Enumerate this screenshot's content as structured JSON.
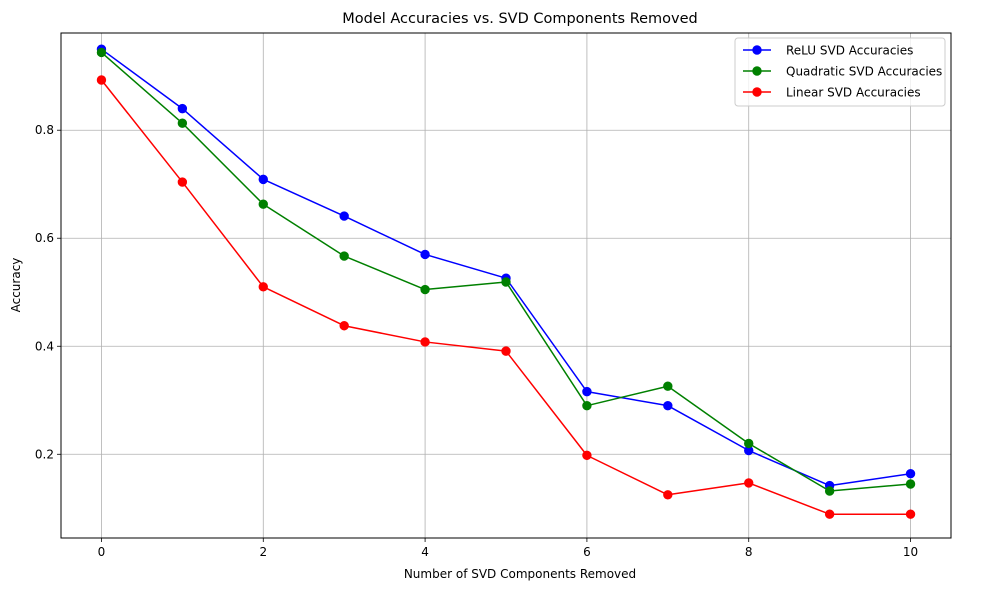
{
  "chart_data": {
    "type": "line",
    "title": "Model Accuracies vs. SVD Components Removed",
    "xlabel": "Number of SVD Components Removed",
    "ylabel": "Accuracy",
    "x": [
      0,
      1,
      2,
      3,
      4,
      5,
      6,
      7,
      8,
      9,
      10
    ],
    "xlim": [
      -0.5,
      10.5
    ],
    "ylim": [
      0.045,
      0.98
    ],
    "xticks": [
      0,
      2,
      4,
      6,
      8,
      10
    ],
    "xtick_labels": [
      "0",
      "2",
      "4",
      "6",
      "8",
      "10"
    ],
    "yticks": [
      0.2,
      0.4,
      0.6,
      0.8
    ],
    "ytick_labels": [
      "0.2",
      "0.4",
      "0.6",
      "0.8"
    ],
    "grid": true,
    "legend_position": "top-right",
    "marker": "circle",
    "series": [
      {
        "name": "ReLU SVD Accuracies",
        "color": "#0000ff",
        "values": [
          0.95,
          0.84,
          0.709,
          0.641,
          0.57,
          0.526,
          0.316,
          0.29,
          0.207,
          0.142,
          0.164
        ]
      },
      {
        "name": "Quadratic SVD Accuracies",
        "color": "#008000",
        "values": [
          0.944,
          0.813,
          0.663,
          0.567,
          0.505,
          0.519,
          0.29,
          0.326,
          0.22,
          0.132,
          0.145
        ]
      },
      {
        "name": "Linear SVD Accuracies",
        "color": "#ff0000",
        "values": [
          0.893,
          0.704,
          0.51,
          0.438,
          0.408,
          0.391,
          0.198,
          0.125,
          0.147,
          0.089,
          0.089
        ]
      }
    ]
  }
}
